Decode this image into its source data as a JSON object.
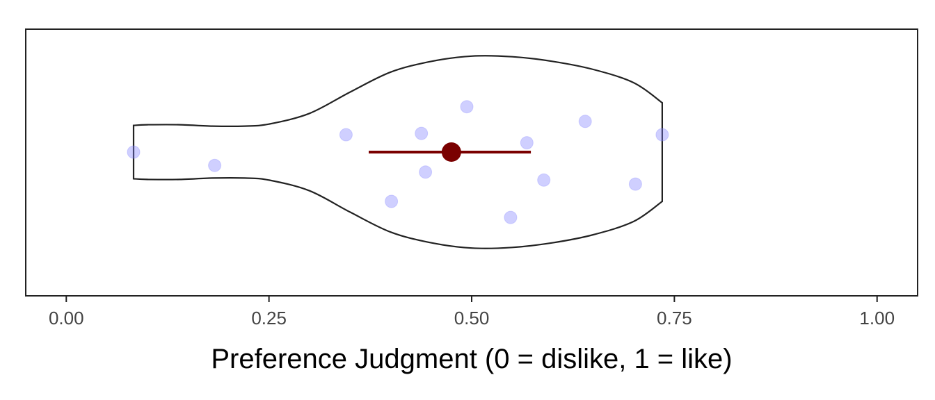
{
  "chart_data": {
    "type": "scatter",
    "title": "",
    "xlabel": "Preference Judgment (0 = dislike, 1 = like)",
    "ylabel": "",
    "xlim": [
      -0.05,
      1.05
    ],
    "xticks": [
      0.0,
      0.25,
      0.5,
      0.75,
      1.0
    ],
    "xtick_labels": [
      "0.00",
      "0.25",
      "0.50",
      "0.75",
      "1.00"
    ],
    "grid": false,
    "colors": {
      "points": "#8080ff",
      "violin_outline": "#222222",
      "summary": "#7a0000",
      "frame": "#222222"
    },
    "points": [
      {
        "x": 0.083,
        "jitter": 0.0
      },
      {
        "x": 0.183,
        "jitter": -0.1
      },
      {
        "x": 0.345,
        "jitter": 0.13
      },
      {
        "x": 0.401,
        "jitter": -0.37
      },
      {
        "x": 0.438,
        "jitter": 0.14
      },
      {
        "x": 0.443,
        "jitter": -0.15
      },
      {
        "x": 0.494,
        "jitter": 0.34
      },
      {
        "x": 0.548,
        "jitter": -0.49
      },
      {
        "x": 0.568,
        "jitter": 0.07
      },
      {
        "x": 0.589,
        "jitter": -0.21
      },
      {
        "x": 0.64,
        "jitter": 0.23
      },
      {
        "x": 0.702,
        "jitter": -0.24
      },
      {
        "x": 0.735,
        "jitter": 0.13
      }
    ],
    "summary": {
      "mean": 0.475,
      "ci_low": 0.373,
      "ci_high": 0.573
    },
    "violin": {
      "x_min": 0.083,
      "x_max": 0.735,
      "density": [
        [
          0.083,
          0.2
        ],
        [
          0.1,
          0.205
        ],
        [
          0.14,
          0.205
        ],
        [
          0.18,
          0.195
        ],
        [
          0.22,
          0.195
        ],
        [
          0.25,
          0.21
        ],
        [
          0.3,
          0.29
        ],
        [
          0.35,
          0.45
        ],
        [
          0.4,
          0.6
        ],
        [
          0.45,
          0.68
        ],
        [
          0.5,
          0.72
        ],
        [
          0.55,
          0.715
        ],
        [
          0.6,
          0.68
        ],
        [
          0.65,
          0.62
        ],
        [
          0.7,
          0.52
        ],
        [
          0.735,
          0.37
        ]
      ]
    }
  }
}
